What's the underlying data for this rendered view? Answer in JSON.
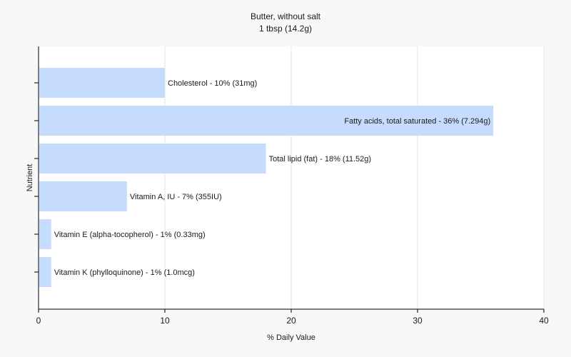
{
  "chart_data": {
    "type": "bar",
    "orientation": "horizontal",
    "title": "Butter, without salt",
    "subtitle": "1 tbsp (14.2g)",
    "xlabel": "% Daily Value",
    "ylabel": "Nutrient",
    "xlim": [
      0,
      40
    ],
    "xticks": [
      0,
      10,
      20,
      30,
      40
    ],
    "grid": true,
    "bar_color": "#c6dcff",
    "categories": [
      "Cholesterol",
      "Fatty acids, total saturated",
      "Total lipid (fat)",
      "Vitamin A, IU",
      "Vitamin E (alpha-tocopherol)",
      "Vitamin K (phylloquinone)"
    ],
    "values": [
      10,
      36,
      18,
      7,
      1,
      1
    ],
    "labels": [
      "Cholesterol - 10% (31mg)",
      "Fatty acids, total saturated - 36% (7.294g)",
      "Total lipid (fat) - 18% (11.52g)",
      "Vitamin A, IU - 7% (355IU)",
      "Vitamin E (alpha-tocopherol) - 1% (0.33mg)",
      "Vitamin K (phylloquinone) - 1% (1.0mcg)"
    ]
  }
}
